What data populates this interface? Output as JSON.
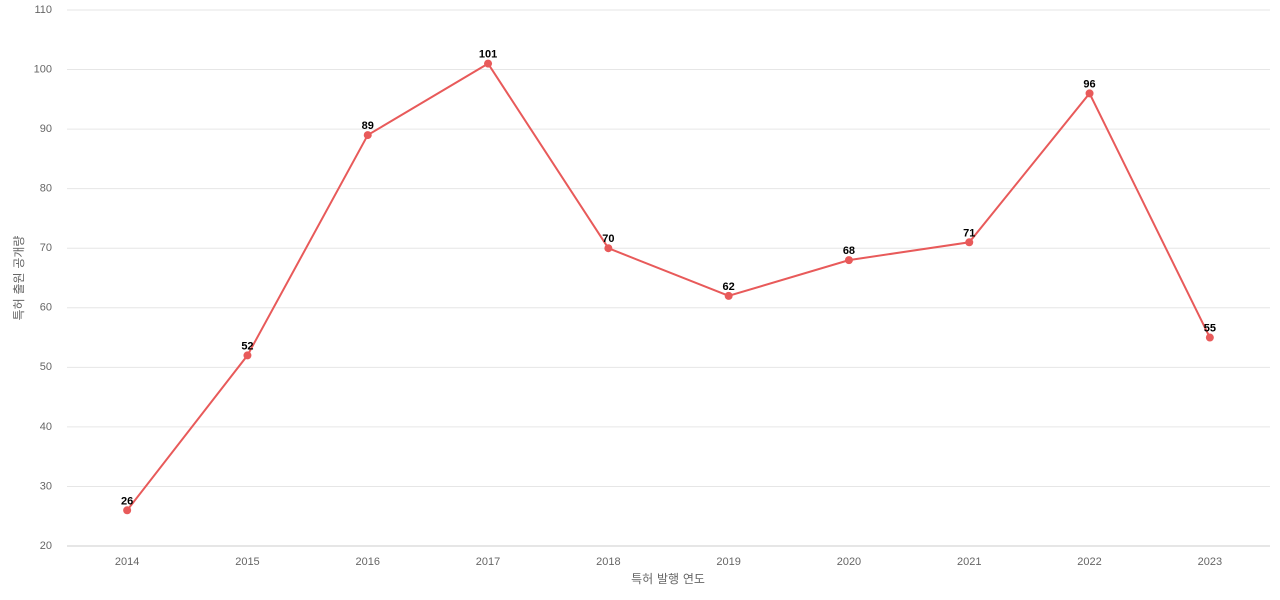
{
  "chart_data": {
    "type": "line",
    "categories": [
      "2014",
      "2015",
      "2016",
      "2017",
      "2018",
      "2019",
      "2020",
      "2021",
      "2022",
      "2023"
    ],
    "series": [
      {
        "values": [
          26,
          52,
          89,
          101,
          70,
          62,
          68,
          71,
          96,
          55
        ],
        "color": "#e85a5a"
      }
    ],
    "xlabel": "특허 발행 연도",
    "ylabel": "특허 출원 공개량",
    "ylim": [
      20,
      110
    ],
    "yticks": [
      20,
      30,
      40,
      50,
      60,
      70,
      80,
      90,
      100,
      110
    ],
    "grid": true,
    "data_labels": true
  }
}
